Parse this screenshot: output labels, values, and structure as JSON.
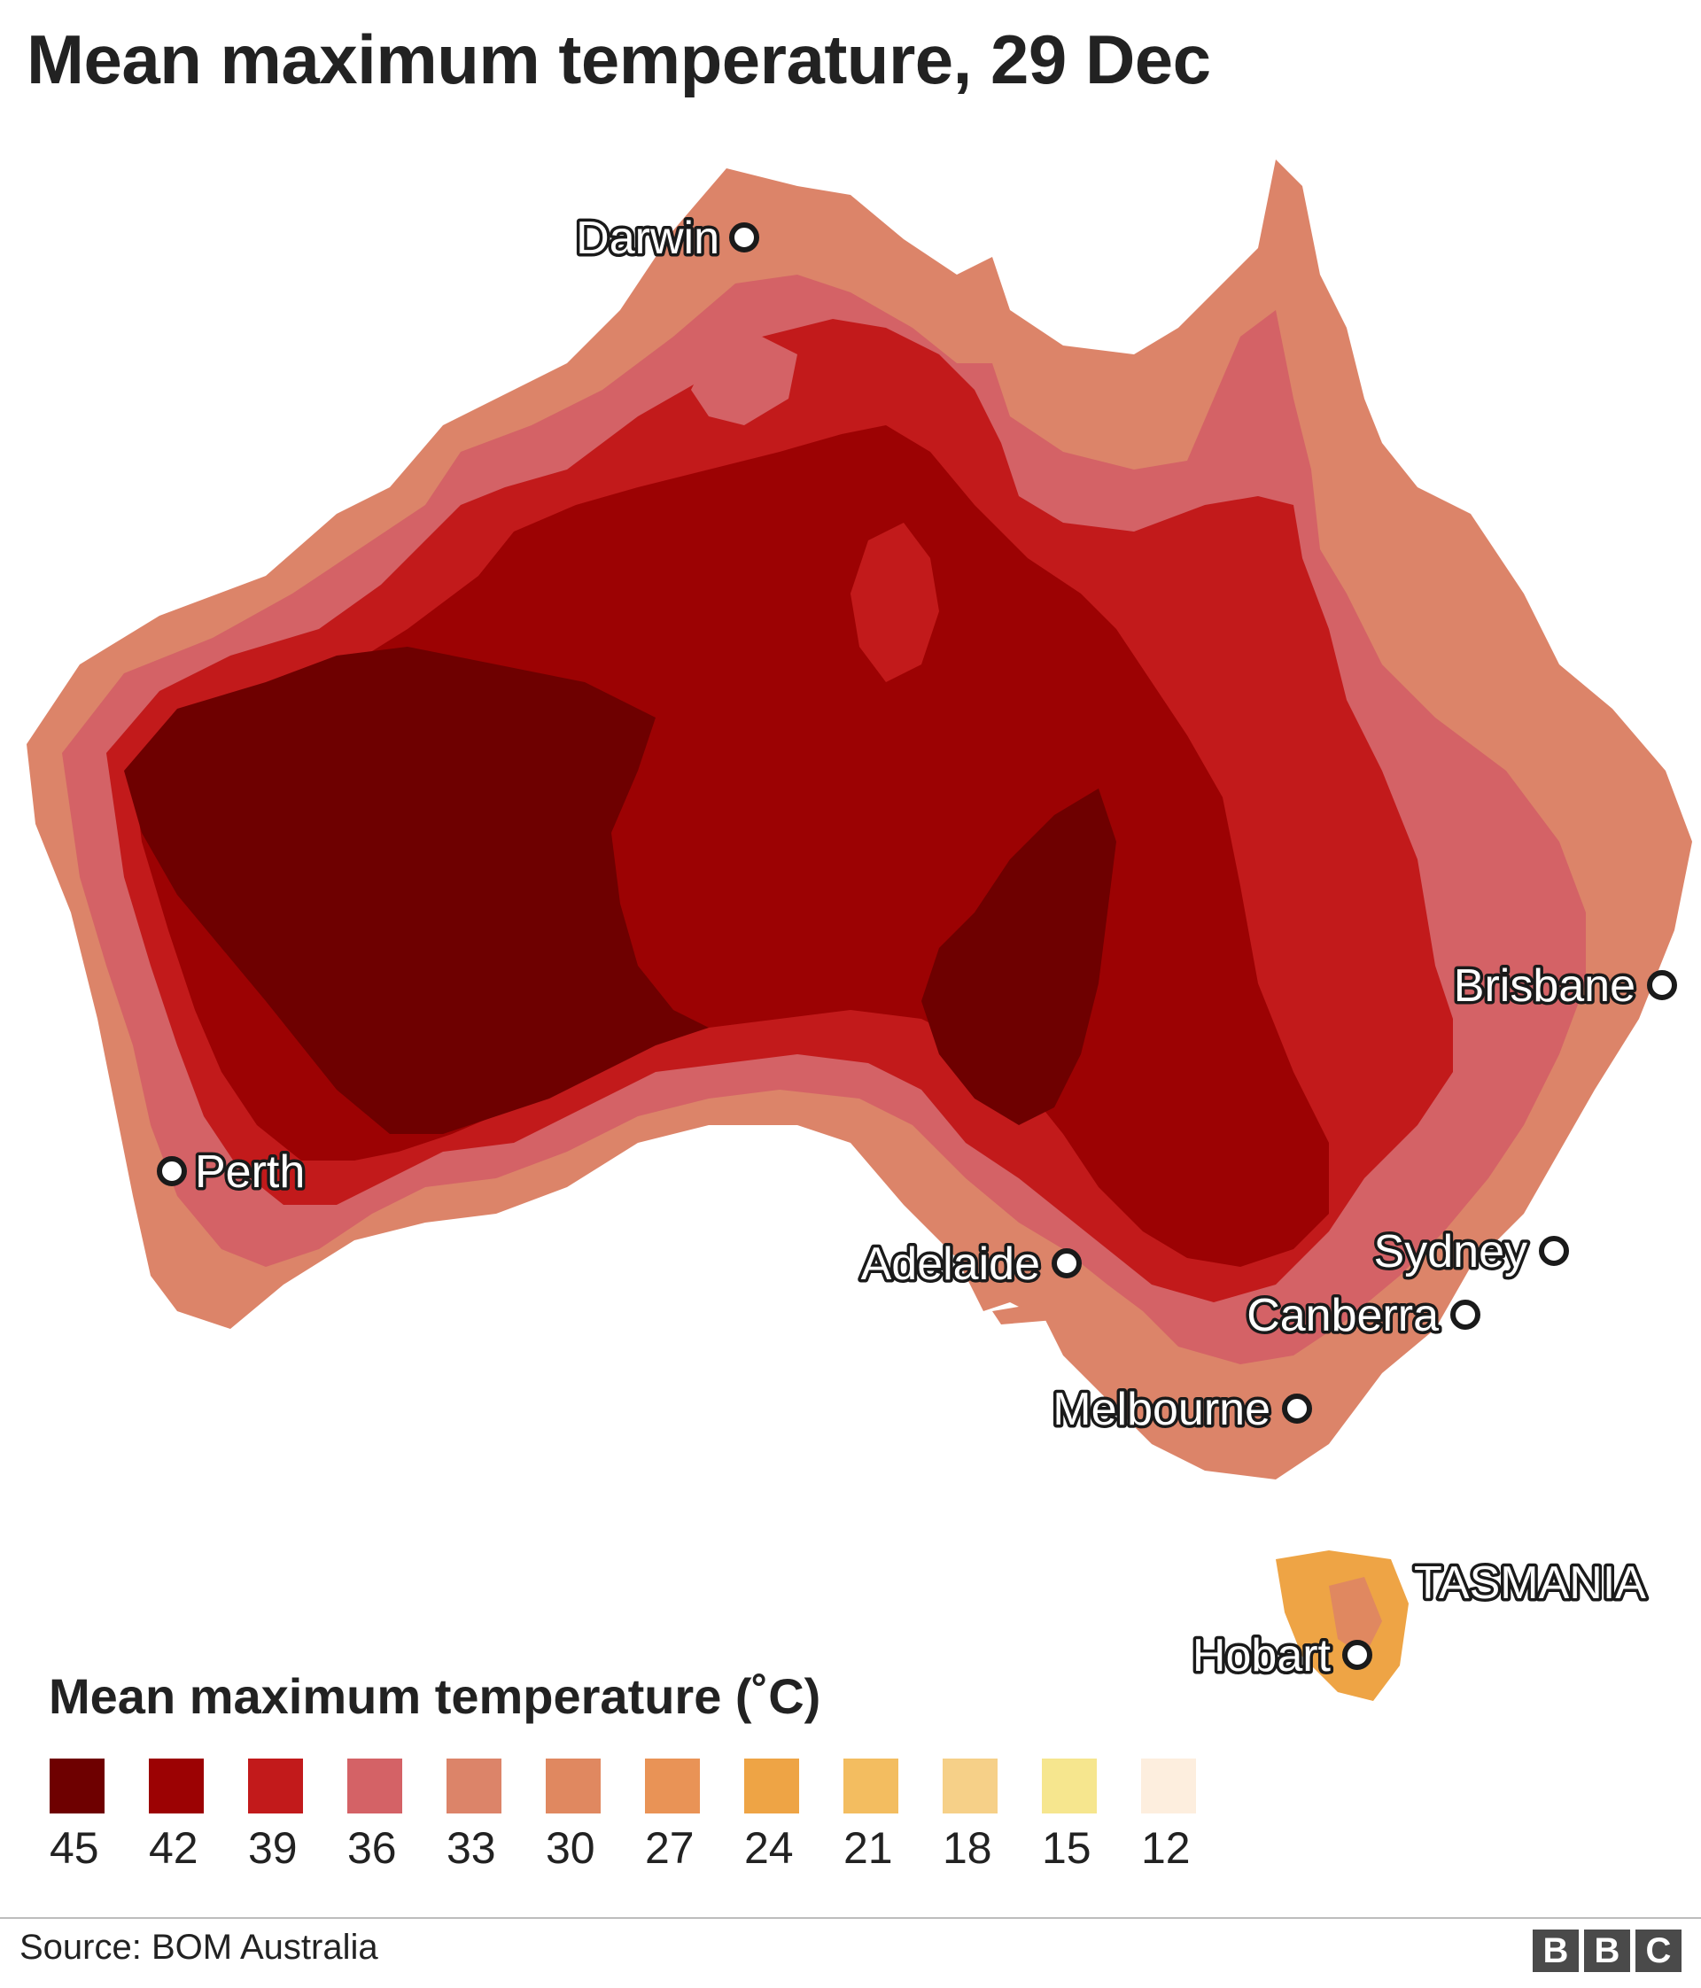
{
  "title": "Mean maximum temperature, 29 Dec",
  "map": {
    "region": "Australia",
    "cities": [
      {
        "name": "Darwin",
        "id": "darwin"
      },
      {
        "name": "Brisbane",
        "id": "brisbane"
      },
      {
        "name": "Perth",
        "id": "perth"
      },
      {
        "name": "Adelaide",
        "id": "adelaide"
      },
      {
        "name": "Sydney",
        "id": "sydney"
      },
      {
        "name": "Canberra",
        "id": "canberra"
      },
      {
        "name": "Melbourne",
        "id": "melbourne"
      },
      {
        "name": "Hobart",
        "id": "hobart"
      }
    ],
    "region_label": "TASMANIA"
  },
  "legend": {
    "title": "Mean maximum temperature (˚C)",
    "items": [
      {
        "label": "45",
        "color": "#6e0000"
      },
      {
        "label": "42",
        "color": "#9c0203"
      },
      {
        "label": "39",
        "color": "#c21a1b"
      },
      {
        "label": "36",
        "color": "#d46266"
      },
      {
        "label": "33",
        "color": "#dc8469"
      },
      {
        "label": "30",
        "color": "#e08860"
      },
      {
        "label": "27",
        "color": "#e99356"
      },
      {
        "label": "24",
        "color": "#eea445"
      },
      {
        "label": "21",
        "color": "#f3bd60"
      },
      {
        "label": "18",
        "color": "#f6d088"
      },
      {
        "label": "15",
        "color": "#f6e68e"
      },
      {
        "label": "12",
        "color": "#fdeede"
      }
    ]
  },
  "footer": {
    "source": "Source: BOM Australia",
    "logo": [
      "B",
      "B",
      "C"
    ]
  }
}
